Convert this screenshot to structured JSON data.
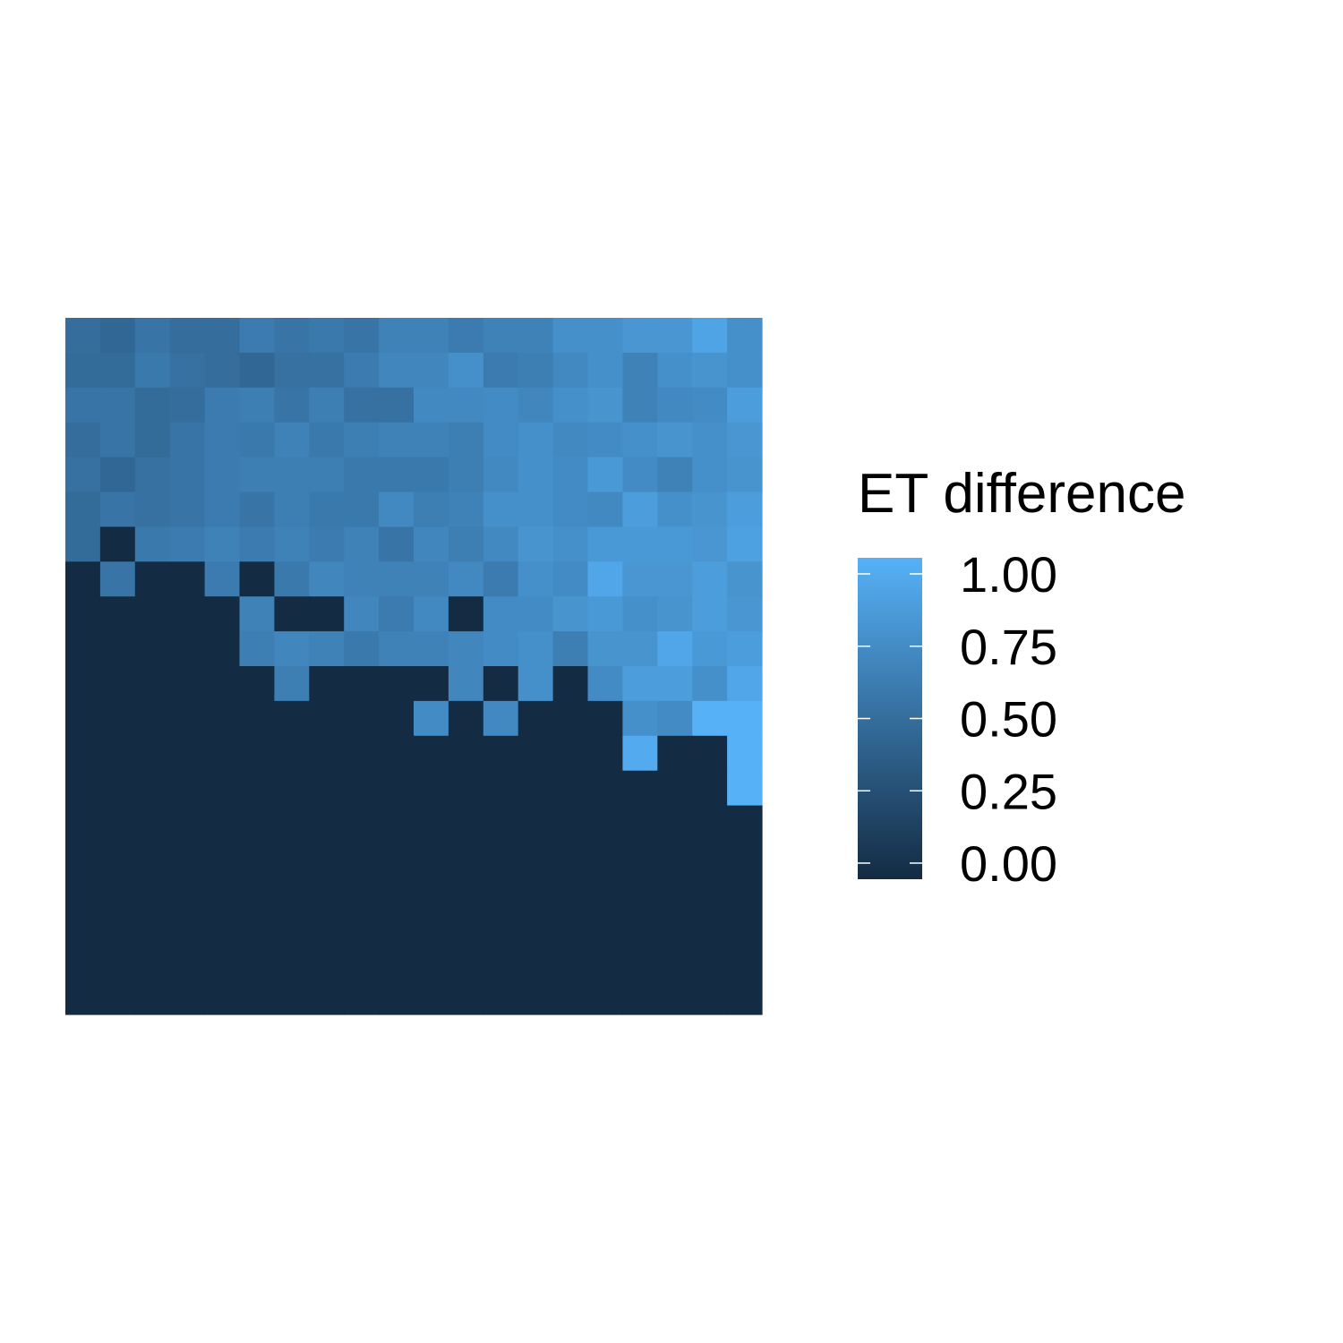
{
  "chart_data": {
    "type": "heatmap",
    "title": "",
    "xlabel": "",
    "ylabel": "",
    "n_cols": 20,
    "n_rows": 20,
    "value_range": [
      0,
      1
    ],
    "axes_visible": false,
    "grid": false,
    "color_scale": {
      "low": "#132B43",
      "high": "#56B1F7"
    },
    "legend": {
      "title": "ET difference",
      "placement": "right",
      "ticks": [
        {
          "value": 0.0,
          "label": "0.00"
        },
        {
          "value": 0.25,
          "label": "0.25"
        },
        {
          "value": 0.5,
          "label": "0.50"
        },
        {
          "value": 0.75,
          "label": "0.75"
        },
        {
          "value": 1.0,
          "label": "1.00"
        }
      ]
    },
    "values": [
      [
        0.5,
        0.45,
        0.55,
        0.5,
        0.5,
        0.6,
        0.55,
        0.58,
        0.55,
        0.65,
        0.65,
        0.6,
        0.65,
        0.65,
        0.75,
        0.75,
        0.8,
        0.8,
        0.9,
        0.75
      ],
      [
        0.48,
        0.48,
        0.58,
        0.52,
        0.5,
        0.45,
        0.52,
        0.52,
        0.6,
        0.68,
        0.68,
        0.75,
        0.6,
        0.62,
        0.7,
        0.75,
        0.65,
        0.75,
        0.78,
        0.75
      ],
      [
        0.55,
        0.55,
        0.48,
        0.5,
        0.6,
        0.62,
        0.55,
        0.62,
        0.52,
        0.52,
        0.7,
        0.7,
        0.72,
        0.68,
        0.75,
        0.78,
        0.65,
        0.7,
        0.72,
        0.85
      ],
      [
        0.5,
        0.55,
        0.48,
        0.55,
        0.6,
        0.58,
        0.65,
        0.58,
        0.62,
        0.65,
        0.65,
        0.62,
        0.72,
        0.75,
        0.7,
        0.72,
        0.75,
        0.78,
        0.75,
        0.8
      ],
      [
        0.52,
        0.45,
        0.52,
        0.55,
        0.6,
        0.62,
        0.62,
        0.62,
        0.58,
        0.58,
        0.58,
        0.62,
        0.7,
        0.75,
        0.72,
        0.82,
        0.72,
        0.65,
        0.75,
        0.78
      ],
      [
        0.48,
        0.55,
        0.52,
        0.55,
        0.6,
        0.55,
        0.62,
        0.58,
        0.58,
        0.7,
        0.62,
        0.65,
        0.75,
        0.75,
        0.72,
        0.7,
        0.85,
        0.75,
        0.78,
        0.85
      ],
      [
        0.48,
        0.0,
        0.58,
        0.6,
        0.65,
        0.6,
        0.65,
        0.6,
        0.65,
        0.55,
        0.68,
        0.62,
        0.7,
        0.78,
        0.75,
        0.82,
        0.82,
        0.82,
        0.8,
        0.88
      ],
      [
        0.0,
        0.55,
        0.0,
        0.0,
        0.6,
        0.0,
        0.58,
        0.68,
        0.65,
        0.65,
        0.65,
        0.7,
        0.6,
        0.75,
        0.72,
        0.92,
        0.8,
        0.8,
        0.85,
        0.78
      ],
      [
        0.0,
        0.0,
        0.0,
        0.0,
        0.0,
        0.65,
        0.0,
        0.0,
        0.68,
        0.6,
        0.7,
        0.0,
        0.72,
        0.72,
        0.78,
        0.82,
        0.75,
        0.78,
        0.85,
        0.8
      ],
      [
        0.0,
        0.0,
        0.0,
        0.0,
        0.0,
        0.62,
        0.68,
        0.65,
        0.58,
        0.65,
        0.65,
        0.68,
        0.72,
        0.75,
        0.62,
        0.78,
        0.78,
        0.92,
        0.82,
        0.85
      ],
      [
        0.0,
        0.0,
        0.0,
        0.0,
        0.0,
        0.0,
        0.62,
        0.0,
        0.0,
        0.0,
        0.0,
        0.68,
        0.0,
        0.75,
        0.0,
        0.72,
        0.85,
        0.85,
        0.75,
        0.92
      ],
      [
        0.0,
        0.0,
        0.0,
        0.0,
        0.0,
        0.0,
        0.0,
        0.0,
        0.0,
        0.0,
        0.72,
        0.0,
        0.7,
        0.0,
        0.0,
        0.0,
        0.75,
        0.72,
        1.0,
        1.0
      ],
      [
        0.0,
        0.0,
        0.0,
        0.0,
        0.0,
        0.0,
        0.0,
        0.0,
        0.0,
        0.0,
        0.0,
        0.0,
        0.0,
        0.0,
        0.0,
        0.0,
        0.95,
        0.0,
        0.0,
        1.0
      ],
      [
        0.0,
        0.0,
        0.0,
        0.0,
        0.0,
        0.0,
        0.0,
        0.0,
        0.0,
        0.0,
        0.0,
        0.0,
        0.0,
        0.0,
        0.0,
        0.0,
        0.0,
        0.0,
        0.0,
        1.0
      ],
      [
        0.0,
        0.0,
        0.0,
        0.0,
        0.0,
        0.0,
        0.0,
        0.0,
        0.0,
        0.0,
        0.0,
        0.0,
        0.0,
        0.0,
        0.0,
        0.0,
        0.0,
        0.0,
        0.0,
        0.0
      ],
      [
        0.0,
        0.0,
        0.0,
        0.0,
        0.0,
        0.0,
        0.0,
        0.0,
        0.0,
        0.0,
        0.0,
        0.0,
        0.0,
        0.0,
        0.0,
        0.0,
        0.0,
        0.0,
        0.0,
        0.0
      ],
      [
        0.0,
        0.0,
        0.0,
        0.0,
        0.0,
        0.0,
        0.0,
        0.0,
        0.0,
        0.0,
        0.0,
        0.0,
        0.0,
        0.0,
        0.0,
        0.0,
        0.0,
        0.0,
        0.0,
        0.0
      ],
      [
        0.0,
        0.0,
        0.0,
        0.0,
        0.0,
        0.0,
        0.0,
        0.0,
        0.0,
        0.0,
        0.0,
        0.0,
        0.0,
        0.0,
        0.0,
        0.0,
        0.0,
        0.0,
        0.0,
        0.0
      ],
      [
        0.0,
        0.0,
        0.0,
        0.0,
        0.0,
        0.0,
        0.0,
        0.0,
        0.0,
        0.0,
        0.0,
        0.0,
        0.0,
        0.0,
        0.0,
        0.0,
        0.0,
        0.0,
        0.0,
        0.0
      ],
      [
        0.0,
        0.0,
        0.0,
        0.0,
        0.0,
        0.0,
        0.0,
        0.0,
        0.0,
        0.0,
        0.0,
        0.0,
        0.0,
        0.0,
        0.0,
        0.0,
        0.0,
        0.0,
        0.0,
        0.0
      ]
    ]
  }
}
